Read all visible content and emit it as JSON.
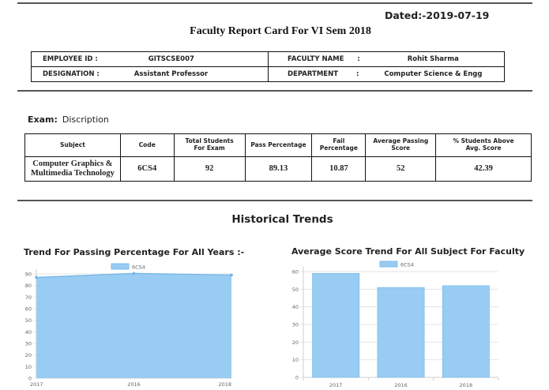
{
  "header": {
    "dated": "Dated:-2019-07-19",
    "title": "Faculty Report Card For  VI Sem 2018"
  },
  "employee": {
    "id_label": "EMPLOYEE ID :",
    "id_value": "GITSCSE007",
    "faculty_label": "FACULTY  NAME",
    "faculty_sep": ":",
    "faculty_value": "Rohit Sharma",
    "designation_label": "DESIGNATION :",
    "designation_value": "Assistant Professor",
    "department_label": "DEPARTMENT",
    "department_sep": ":",
    "department_value": "Computer Science & Engg"
  },
  "exam": {
    "label": "Exam:",
    "value": "Discription"
  },
  "subject_table": {
    "headers": [
      [
        "Subject"
      ],
      [
        "Code"
      ],
      [
        "Total Students",
        "For Exam"
      ],
      [
        "Pass Percentage"
      ],
      [
        "Fail",
        "Percentage"
      ],
      [
        "Average Passing",
        "Score"
      ],
      [
        "% Students Above",
        "Avg. Score"
      ]
    ],
    "rows": [
      {
        "subject": [
          "Computer Graphics &",
          "Multimedia Technology"
        ],
        "code": "6CS4",
        "total_students": "92",
        "pass_percentage": "89.13",
        "fail_percentage": "10.87",
        "average_passing_score": "52",
        "students_above_avg": "42.39"
      }
    ]
  },
  "historical": {
    "title": "Historical Trends"
  },
  "colors": {
    "fill": "#99ccf2",
    "line": "#6eb4e8",
    "grid": "#e6e6e6",
    "axis_text": "#666666",
    "rule": "#555555"
  },
  "chart_data": [
    {
      "type": "area",
      "title": "Trend For Passing Percentage For All Years :-",
      "x": [
        "2017",
        "2016",
        "2018"
      ],
      "series": [
        {
          "name": "6CS4",
          "values": [
            87,
            90.5,
            89.1
          ]
        }
      ],
      "ylim": [
        0,
        90
      ],
      "yticks": [
        0,
        10,
        20,
        30,
        40,
        50,
        60,
        70,
        80,
        90
      ],
      "grid": true,
      "legend": "top-center"
    },
    {
      "type": "bar",
      "title": "Average Score Trend For All Subject For Faculty",
      "categories": [
        "2017",
        "2016",
        "2018"
      ],
      "series": [
        {
          "name": "6CS4",
          "values": [
            59,
            51,
            52
          ]
        }
      ],
      "ylim": [
        0,
        60
      ],
      "yticks": [
        0,
        10,
        20,
        30,
        40,
        50,
        60
      ],
      "grid": true,
      "legend": "top-center"
    }
  ]
}
